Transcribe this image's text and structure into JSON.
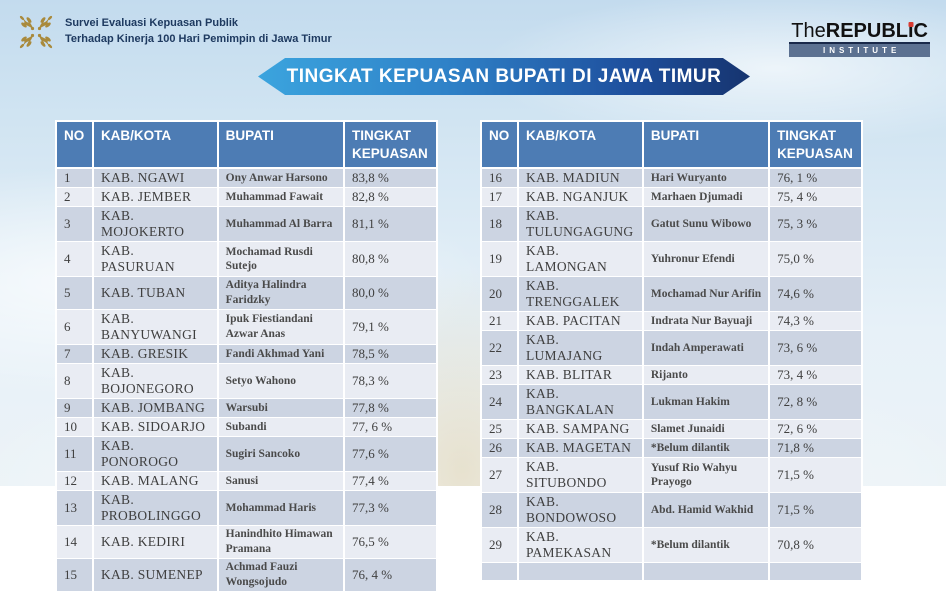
{
  "header": {
    "survey_line1": "Survei Evaluasi Kepuasan Publik",
    "survey_line2": "Terhadap Kinerja 100 Hari Pemimpin di Jawa Timur",
    "logo": {
      "the": "The",
      "republ": "REPUBL",
      "i": "i",
      "c": "C",
      "institute": "INSTITUTE"
    }
  },
  "banner": {
    "title": "TINGKAT KEPUASAN BUPATI DI JAWA TIMUR"
  },
  "table": {
    "headers": {
      "no": "NO",
      "kab": "KAB/KOTA",
      "bupati": "BUPATI",
      "tingkat": "TINGKAT KEPUASAN"
    },
    "left_rows": [
      {
        "no": "1",
        "kab": "KAB. NGAWI",
        "bupati": "Ony Anwar Harsono",
        "tingkat": "83,8 %"
      },
      {
        "no": "2",
        "kab": "KAB. JEMBER",
        "bupati": "Muhammad Fawait",
        "tingkat": "82,8 %"
      },
      {
        "no": "3",
        "kab": "KAB. MOJOKERTO",
        "bupati": "Muhammad Al Barra",
        "tingkat": "81,1 %"
      },
      {
        "no": "4",
        "kab": "KAB. PASURUAN",
        "bupati": "Mochamad Rusdi Sutejo",
        "tingkat": "80,8 %"
      },
      {
        "no": "5",
        "kab": "KAB. TUBAN",
        "bupati": "Aditya Halindra Faridzky",
        "tingkat": "80,0 %"
      },
      {
        "no": "6",
        "kab": "KAB. BANYUWANGI",
        "bupati": "Ipuk Fiestiandani Azwar Anas",
        "tingkat": "79,1 %"
      },
      {
        "no": "7",
        "kab": "KAB. GRESIK",
        "bupati": "Fandi Akhmad Yani",
        "tingkat": "78,5 %"
      },
      {
        "no": "8",
        "kab": "KAB. BOJONEGORO",
        "bupati": "Setyo Wahono",
        "tingkat": "78,3 %"
      },
      {
        "no": "9",
        "kab": "KAB. JOMBANG",
        "bupati": "Warsubi",
        "tingkat": "77,8 %"
      },
      {
        "no": "10",
        "kab": "KAB. SIDOARJO",
        "bupati": "Subandi",
        "tingkat": "77, 6 %"
      },
      {
        "no": "11",
        "kab": "KAB. PONOROGO",
        "bupati": "Sugiri Sancoko",
        "tingkat": "77,6 %"
      },
      {
        "no": "12",
        "kab": "KAB. MALANG",
        "bupati": "Sanusi",
        "tingkat": "77,4 %"
      },
      {
        "no": "13",
        "kab": "KAB. PROBOLINGGO",
        "bupati": "Mohammad Haris",
        "tingkat": "77,3 %"
      },
      {
        "no": "14",
        "kab": "KAB. KEDIRI",
        "bupati": "Hanindhito Himawan Pramana",
        "tingkat": "76,5 %"
      },
      {
        "no": "15",
        "kab": "KAB. SUMENEP",
        "bupati": "Achmad Fauzi Wongsojudo",
        "tingkat": "76, 4 %"
      }
    ],
    "right_rows": [
      {
        "no": "16",
        "kab": "KAB. MADIUN",
        "bupati": "Hari Wuryanto",
        "tingkat": "76, 1 %"
      },
      {
        "no": "17",
        "kab": "KAB. NGANJUK",
        "bupati": "Marhaen Djumadi",
        "tingkat": "75, 4 %"
      },
      {
        "no": "18",
        "kab": "KAB. TULUNGAGUNG",
        "bupati": "Gatut Sunu Wibowo",
        "tingkat": "75, 3 %"
      },
      {
        "no": "19",
        "kab": "KAB. LAMONGAN",
        "bupati": "Yuhronur Efendi",
        "tingkat": "75,0 %"
      },
      {
        "no": "20",
        "kab": "KAB. TRENGGALEK",
        "bupati": "Mochamad Nur Arifin",
        "tingkat": "74,6 %"
      },
      {
        "no": "21",
        "kab": "KAB. PACITAN",
        "bupati": "Indrata Nur Bayuaji",
        "tingkat": "74,3 %"
      },
      {
        "no": "22",
        "kab": "KAB. LUMAJANG",
        "bupati": "Indah Amperawati",
        "tingkat": "73, 6 %"
      },
      {
        "no": "23",
        "kab": "KAB. BLITAR",
        "bupati": "Rijanto",
        "tingkat": "73, 4 %"
      },
      {
        "no": "24",
        "kab": "KAB. BANGKALAN",
        "bupati": "Lukman Hakim",
        "tingkat": "72, 8 %"
      },
      {
        "no": "25",
        "kab": "KAB. SAMPANG",
        "bupati": "Slamet Junaidi",
        "tingkat": "72, 6 %"
      },
      {
        "no": "26",
        "kab": "KAB. MAGETAN",
        "bupati": "*Belum dilantik",
        "tingkat": "71,8 %"
      },
      {
        "no": "27",
        "kab": "KAB. SITUBONDO",
        "bupati": "Yusuf Rio Wahyu Prayogo",
        "tingkat": "71,5 %"
      },
      {
        "no": "28",
        "kab": "KAB. BONDOWOSO",
        "bupati": "Abd. Hamid Wakhid",
        "tingkat": "71,5 %"
      },
      {
        "no": "29",
        "kab": "KAB. PAMEKASAN",
        "bupati": "*Belum dilantik",
        "tingkat": "70,8 %"
      },
      {
        "no": "",
        "kab": "",
        "bupati": "",
        "tingkat": ""
      }
    ]
  },
  "colors": {
    "table_header_bg": "#4d7cb4",
    "row_band_dark": "#ccd4e2",
    "row_band_light": "#e9ecf3",
    "banner_gradient_start": "#3ba4de",
    "banner_gradient_end": "#16346f",
    "ornament_gold": "#a98a3c",
    "institute_bar": "#5c7191",
    "logo_dot_red": "#d93a30",
    "survey_text": "#1e3a60"
  }
}
